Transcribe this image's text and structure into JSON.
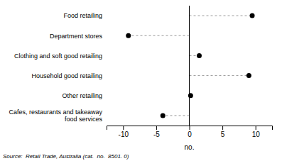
{
  "chart_data": {
    "type": "lollipop",
    "orientation": "horizontal",
    "categories": [
      "Cafes, restaurants and takeaway food services",
      "Other retailing",
      "Household good retailing",
      "Clothing and soft good retailing",
      "Department stores",
      "Food retailing"
    ],
    "values": [
      -4.0,
      0.2,
      9.0,
      1.5,
      -9.2,
      9.5
    ],
    "xlim": [
      -12.5,
      12.5
    ],
    "xticks": [
      -10,
      -5,
      0,
      5,
      10
    ],
    "xlabel": "no.",
    "annotation": "Source:  Retail Trade, Australia (cat.  no.  8501. 0)",
    "color": "#000000",
    "marker": "circle",
    "line_style": "dashed",
    "grid": false
  }
}
